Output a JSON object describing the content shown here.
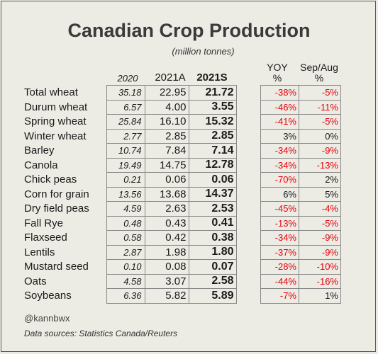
{
  "title": "Canadian Crop Production",
  "subtitle": "(million tonnes)",
  "headers": {
    "y2020": "2020",
    "y2021a": "2021A",
    "y2021s": "2021S",
    "yoy": "YOY",
    "yoy_unit": "%",
    "sepaug": "Sep/Aug",
    "sepaug_unit": "%"
  },
  "rows": [
    {
      "crop": "Total wheat",
      "y2020": "35.18",
      "y2021a": "22.95",
      "y2021s": "21.72",
      "yoy": "-38%",
      "sepaug": "-5%"
    },
    {
      "crop": "Durum wheat",
      "y2020": "6.57",
      "y2021a": "4.00",
      "y2021s": "3.55",
      "yoy": "-46%",
      "sepaug": "-11%"
    },
    {
      "crop": "Spring wheat",
      "y2020": "25.84",
      "y2021a": "16.10",
      "y2021s": "15.32",
      "yoy": "-41%",
      "sepaug": "-5%"
    },
    {
      "crop": "Winter wheat",
      "y2020": "2.77",
      "y2021a": "2.85",
      "y2021s": "2.85",
      "yoy": "3%",
      "sepaug": "0%"
    },
    {
      "crop": "Barley",
      "y2020": "10.74",
      "y2021a": "7.84",
      "y2021s": "7.14",
      "yoy": "-34%",
      "sepaug": "-9%"
    },
    {
      "crop": "Canola",
      "y2020": "19.49",
      "y2021a": "14.75",
      "y2021s": "12.78",
      "yoy": "-34%",
      "sepaug": "-13%"
    },
    {
      "crop": "Chick peas",
      "y2020": "0.21",
      "y2021a": "0.06",
      "y2021s": "0.06",
      "yoy": "-70%",
      "sepaug": "2%"
    },
    {
      "crop": "Corn for grain",
      "y2020": "13.56",
      "y2021a": "13.68",
      "y2021s": "14.37",
      "yoy": "6%",
      "sepaug": "5%"
    },
    {
      "crop": "Dry field peas",
      "y2020": "4.59",
      "y2021a": "2.63",
      "y2021s": "2.53",
      "yoy": "-45%",
      "sepaug": "-4%"
    },
    {
      "crop": "Fall Rye",
      "y2020": "0.48",
      "y2021a": "0.43",
      "y2021s": "0.41",
      "yoy": "-13%",
      "sepaug": "-5%"
    },
    {
      "crop": "Flaxseed",
      "y2020": "0.58",
      "y2021a": "0.42",
      "y2021s": "0.38",
      "yoy": "-34%",
      "sepaug": "-9%"
    },
    {
      "crop": "Lentils",
      "y2020": "2.87",
      "y2021a": "1.98",
      "y2021s": "1.80",
      "yoy": "-37%",
      "sepaug": "-9%"
    },
    {
      "crop": "Mustard seed",
      "y2020": "0.10",
      "y2021a": "0.08",
      "y2021s": "0.07",
      "yoy": "-28%",
      "sepaug": "-10%"
    },
    {
      "crop": "Oats",
      "y2020": "4.58",
      "y2021a": "3.07",
      "y2021s": "2.58",
      "yoy": "-44%",
      "sepaug": "-16%"
    },
    {
      "crop": "Soybeans",
      "y2020": "6.36",
      "y2021a": "5.82",
      "y2021s": "5.89",
      "yoy": "-7%",
      "sepaug": "1%"
    }
  ],
  "colors": {
    "negative": "#e8000b",
    "positive": "#1a1a1a"
  },
  "footer": {
    "handle": "@kannbwx",
    "source": "Data sources: Statistics Canada/Reuters"
  }
}
